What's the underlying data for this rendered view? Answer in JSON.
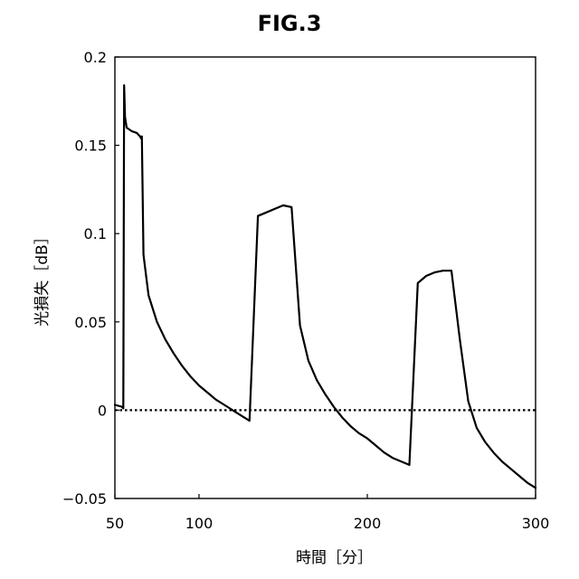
{
  "figure": {
    "title": "FIG.3"
  },
  "chart_data": {
    "type": "line",
    "title": "FIG.3",
    "xlabel": "時間［分］",
    "ylabel": "光損失［dB］",
    "xlim": [
      50,
      300
    ],
    "ylim": [
      -0.05,
      0.2
    ],
    "x_ticks": [
      50,
      100,
      200,
      300
    ],
    "y_ticks": [
      -0.05,
      0,
      0.05,
      0.1,
      0.15,
      0.2
    ],
    "x_tick_labels": [
      "50",
      "100",
      "200",
      "300"
    ],
    "y_tick_labels": [
      "−0.05",
      "0",
      "0.05",
      "0.1",
      "0.15",
      "0.2"
    ],
    "grid": false,
    "reference_line": {
      "y": 0,
      "style": "dotted"
    },
    "series": [
      {
        "x": [
          50,
          54,
          55,
          55.5,
          56,
          57,
          60,
          63,
          64,
          65,
          65.5,
          66,
          67,
          70,
          75,
          80,
          85,
          90,
          95,
          100,
          105,
          110,
          115,
          120,
          125,
          130,
          135,
          140,
          145,
          150,
          155,
          160,
          165,
          170,
          175,
          180,
          185,
          190,
          195,
          200,
          205,
          210,
          215,
          220,
          225,
          230,
          235,
          240,
          245,
          250,
          255,
          260,
          265,
          270,
          275,
          280,
          285,
          290,
          295,
          300
        ],
        "y": [
          0.003,
          0.002,
          0.001,
          0.184,
          0.166,
          0.16,
          0.158,
          0.157,
          0.156,
          0.155,
          0.154,
          0.155,
          0.088,
          0.065,
          0.05,
          0.04,
          0.032,
          0.025,
          0.019,
          0.014,
          0.01,
          0.006,
          0.003,
          0.0,
          -0.003,
          -0.006,
          0.11,
          0.112,
          0.114,
          0.116,
          0.115,
          0.048,
          0.028,
          0.017,
          0.009,
          0.002,
          -0.004,
          -0.009,
          -0.013,
          -0.016,
          -0.02,
          -0.024,
          -0.027,
          -0.029,
          -0.031,
          0.072,
          0.076,
          0.078,
          0.079,
          0.079,
          0.04,
          0.005,
          -0.01,
          -0.018,
          -0.024,
          -0.029,
          -0.033,
          -0.037,
          -0.041,
          -0.044
        ]
      }
    ]
  }
}
